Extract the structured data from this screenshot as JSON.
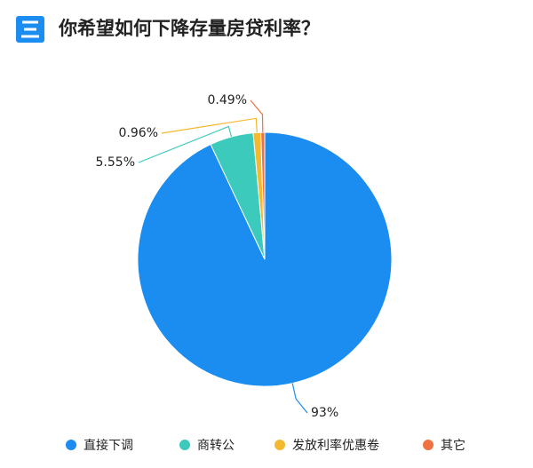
{
  "chart_data": {
    "type": "pie",
    "title": "你希望如何下降存量房贷利率？",
    "categories": [
      "直接下调",
      "商转公",
      "发放利率优惠卷",
      "其它"
    ],
    "values": [
      93,
      5.55,
      0.96,
      0.49
    ],
    "value_labels": [
      "93%",
      "5.55%",
      "0.96%",
      "0.49%"
    ],
    "colors": [
      "#1b8cf0",
      "#3ccabd",
      "#f4b92f",
      "#ef7240"
    ]
  }
}
